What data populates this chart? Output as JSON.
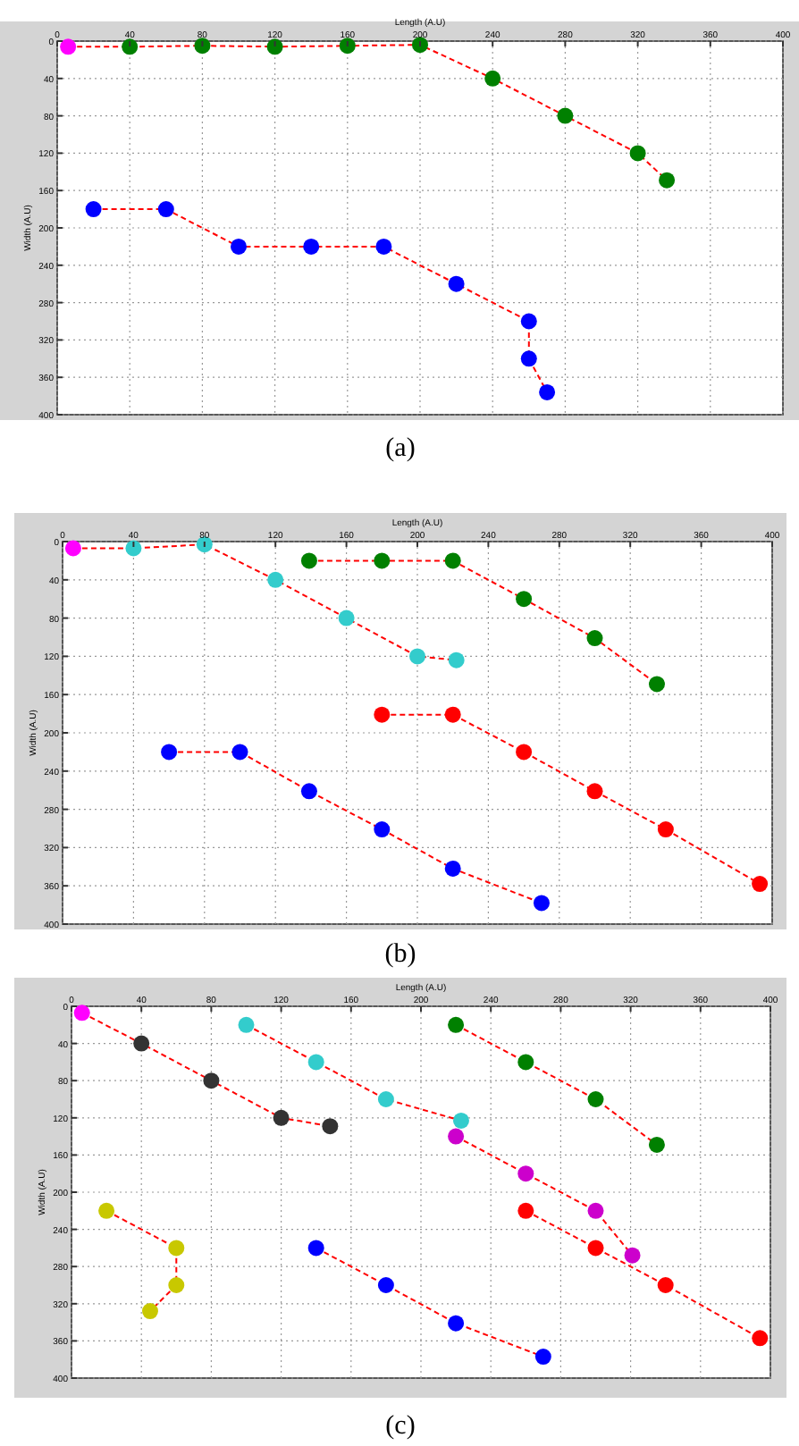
{
  "chart_data": [
    {
      "type": "line",
      "xlabel": "Length (A.U)",
      "ylabel": "Width (A.U)",
      "annotations": [
        "(a)"
      ],
      "xlim": [
        0,
        400
      ],
      "ylim": [
        400,
        0
      ],
      "xticks": [
        0,
        40,
        80,
        120,
        160,
        200,
        240,
        280,
        320,
        360,
        400
      ],
      "yticks": [
        0,
        40,
        80,
        120,
        160,
        200,
        240,
        280,
        320,
        360,
        400
      ],
      "grid": true,
      "marker": "circle",
      "line_style": "dashed",
      "series": [
        {
          "color": "#ff0000",
          "colors": [
            "#ff00ff",
            "#008000",
            "#008000",
            "#008000",
            "#008000",
            "#008000",
            "#008000",
            "#008000",
            "#008000",
            "#008000"
          ],
          "x": [
            6,
            40,
            80,
            120,
            160,
            200,
            240,
            280,
            320,
            336
          ],
          "values": [
            6,
            6,
            5,
            6,
            5,
            4,
            40,
            80,
            120,
            149
          ]
        },
        {
          "color": "#ff0000",
          "colors": [
            "#0000ff",
            "#0000ff",
            "#0000ff",
            "#0000ff",
            "#0000ff",
            "#0000ff",
            "#0000ff",
            "#0000ff",
            "#0000ff"
          ],
          "x": [
            20,
            60,
            100,
            140,
            180,
            220,
            260,
            260,
            270
          ],
          "values": [
            180,
            180,
            220,
            220,
            220,
            260,
            300,
            340,
            376
          ]
        }
      ]
    },
    {
      "type": "line",
      "xlabel": "Length (A.U)",
      "ylabel": "Width (A.U)",
      "annotations": [
        "(b)"
      ],
      "xlim": [
        0,
        400
      ],
      "ylim": [
        400,
        0
      ],
      "xticks": [
        0,
        40,
        80,
        120,
        160,
        200,
        240,
        280,
        320,
        360,
        400
      ],
      "yticks": [
        0,
        40,
        80,
        120,
        160,
        200,
        240,
        280,
        320,
        360,
        400
      ],
      "grid": true,
      "marker": "circle",
      "line_style": "dashed",
      "series": [
        {
          "color": "#ff0000",
          "colors": [
            "#ff00ff",
            "#33cccc",
            "#33cccc",
            "#33cccc",
            "#33cccc",
            "#33cccc",
            "#33cccc"
          ],
          "x": [
            6,
            40,
            80,
            120,
            160,
            200,
            222
          ],
          "values": [
            7,
            7,
            3,
            40,
            80,
            120,
            124
          ]
        },
        {
          "color": "#ff0000",
          "colors": [
            "#008000",
            "#008000",
            "#008000",
            "#008000",
            "#008000",
            "#008000"
          ],
          "x": [
            139,
            180,
            220,
            260,
            300,
            335
          ],
          "values": [
            20,
            20,
            20,
            60,
            101,
            149
          ]
        },
        {
          "color": "#ff0000",
          "colors": [
            "#ff0000",
            "#ff0000",
            "#ff0000",
            "#ff0000",
            "#ff0000",
            "#ff0000"
          ],
          "x": [
            180,
            220,
            260,
            300,
            340,
            393
          ],
          "values": [
            181,
            181,
            220,
            261,
            301,
            358
          ]
        },
        {
          "color": "#ff0000",
          "colors": [
            "#0000ff",
            "#0000ff",
            "#0000ff",
            "#0000ff",
            "#0000ff",
            "#0000ff"
          ],
          "x": [
            60,
            100,
            139,
            180,
            220,
            270
          ],
          "values": [
            220,
            220,
            261,
            301,
            342,
            378
          ]
        }
      ]
    },
    {
      "type": "line",
      "xlabel": "Length (A.U)",
      "ylabel": "Width (A.U)",
      "annotations": [
        "(c)"
      ],
      "xlim": [
        0,
        400
      ],
      "ylim": [
        400,
        0
      ],
      "xticks": [
        0,
        40,
        80,
        120,
        160,
        200,
        240,
        280,
        320,
        360,
        400
      ],
      "yticks": [
        0,
        40,
        80,
        120,
        160,
        200,
        240,
        280,
        320,
        360,
        400
      ],
      "grid": true,
      "marker": "circle",
      "line_style": "dashed",
      "series": [
        {
          "color": "#ff0000",
          "colors": [
            "#ff00ff",
            "#333333",
            "#333333",
            "#333333",
            "#333333"
          ],
          "x": [
            6,
            40,
            80,
            120,
            148
          ],
          "values": [
            7,
            40,
            80,
            120,
            129
          ]
        },
        {
          "color": "#ff0000",
          "colors": [
            "#33cccc",
            "#33cccc",
            "#33cccc",
            "#33cccc"
          ],
          "x": [
            100,
            140,
            180,
            223
          ],
          "values": [
            20,
            60,
            100,
            123
          ]
        },
        {
          "color": "#ff0000",
          "colors": [
            "#008000",
            "#008000",
            "#008000",
            "#008000"
          ],
          "x": [
            220,
            260,
            300,
            335
          ],
          "values": [
            20,
            60,
            100,
            149
          ]
        },
        {
          "color": "#ff0000",
          "colors": [
            "#cc00cc",
            "#cc00cc",
            "#cc00cc",
            "#cc00cc"
          ],
          "x": [
            220,
            260,
            300,
            321
          ],
          "values": [
            140,
            180,
            220,
            268
          ]
        },
        {
          "color": "#ff0000",
          "colors": [
            "#ff0000",
            "#ff0000",
            "#ff0000",
            "#ff0000"
          ],
          "x": [
            260,
            300,
            340,
            394
          ],
          "values": [
            220,
            260,
            300,
            357
          ]
        },
        {
          "color": "#ff0000",
          "colors": [
            "#0000ff",
            "#0000ff",
            "#0000ff",
            "#0000ff"
          ],
          "x": [
            140,
            180,
            220,
            270
          ],
          "values": [
            260,
            300,
            341,
            377
          ]
        },
        {
          "color": "#ff0000",
          "colors": [
            "#c8c800",
            "#c8c800",
            "#c8c800",
            "#c8c800"
          ],
          "x": [
            20,
            60,
            60,
            45
          ],
          "values": [
            220,
            260,
            300,
            328
          ]
        }
      ]
    }
  ]
}
